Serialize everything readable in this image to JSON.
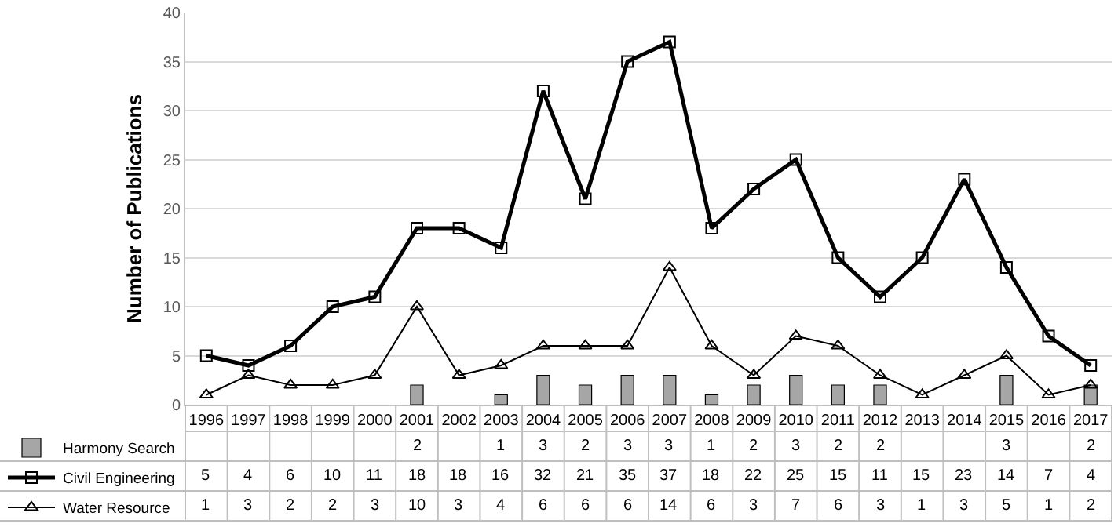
{
  "chart_data": {
    "type": "line",
    "ylabel": "Number of Publications",
    "categories": [
      "1996",
      "1997",
      "1998",
      "1999",
      "2000",
      "2001",
      "2002",
      "2003",
      "2004",
      "2005",
      "2006",
      "2007",
      "2008",
      "2009",
      "2010",
      "2011",
      "2012",
      "2013",
      "2014",
      "2015",
      "2016",
      "2017"
    ],
    "series": [
      {
        "name": "Harmony Search",
        "type": "bar",
        "color": "#a6a6a6",
        "values": [
          null,
          null,
          null,
          null,
          null,
          2,
          null,
          1,
          3,
          2,
          3,
          3,
          1,
          2,
          3,
          2,
          2,
          null,
          null,
          3,
          null,
          2
        ]
      },
      {
        "name": "Civil Engineering",
        "marker": "square",
        "color": "#000000",
        "values": [
          5,
          4,
          6,
          10,
          11,
          18,
          18,
          16,
          32,
          21,
          35,
          37,
          18,
          22,
          25,
          15,
          11,
          15,
          23,
          14,
          7,
          4
        ]
      },
      {
        "name": "Water Resource",
        "marker": "triangle",
        "color": "#000000",
        "values": [
          1,
          3,
          2,
          2,
          3,
          10,
          3,
          4,
          6,
          6,
          6,
          14,
          6,
          3,
          7,
          6,
          3,
          1,
          3,
          5,
          1,
          2
        ]
      }
    ],
    "ylim": [
      0,
      40
    ],
    "yticks": [
      0,
      5,
      10,
      15,
      20,
      25,
      30,
      35,
      40
    ],
    "grid": "y",
    "legend": "bottom left",
    "data_labels": true
  }
}
